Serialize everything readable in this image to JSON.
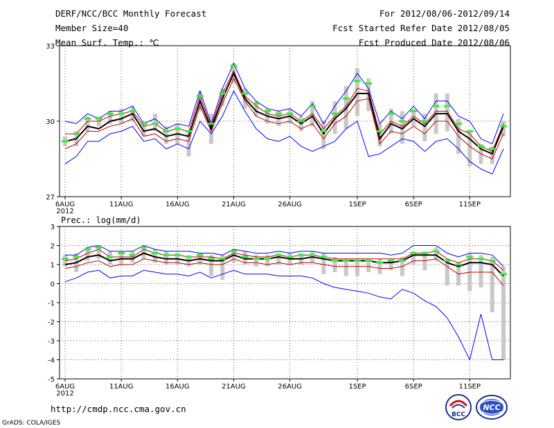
{
  "header": {
    "title": "DERF/NCC/BCC Monthly Forecast",
    "member_size": "Member Size=40",
    "variable": "Mean Surf. Temp.: ℃",
    "period": "For 2012/08/06-2012/09/14",
    "fcst_started": "Fcst Started Refer Date 2012/08/05",
    "fcst_produced": "Fcst Produced Date 2012/08/06"
  },
  "footer": {
    "url": "http://cmdp.ncc.cma.gov.cn",
    "credit": "GrADS: COLA/IGES",
    "logo_bcc": "BCC",
    "logo_ncc": "NCC"
  },
  "colors": {
    "envelope": "#0000ff",
    "spread": "#c00000",
    "mean": "#000000",
    "marker": "#33ee33",
    "box": "#c8c8c8",
    "grid": "#555555"
  },
  "chart_data": [
    {
      "type": "line",
      "title": "Mean Surf. Temp.: ℃",
      "xlabel": "",
      "ylabel": "℃",
      "ylim": [
        27,
        33
      ],
      "yticks": [
        27,
        30,
        33
      ],
      "x_ticks": [
        {
          "day": 0,
          "label": "6AUG",
          "sub": "2012"
        },
        {
          "day": 5,
          "label": "11AUG"
        },
        {
          "day": 10,
          "label": "16AUG"
        },
        {
          "day": 15,
          "label": "21AUG"
        },
        {
          "day": 20,
          "label": "26AUG"
        },
        {
          "day": 26,
          "label": "1SEP"
        },
        {
          "day": 31,
          "label": "6SEP"
        },
        {
          "day": 36,
          "label": "11SEP"
        }
      ],
      "grid": true,
      "days": [
        0,
        1,
        2,
        3,
        4,
        5,
        6,
        7,
        8,
        9,
        10,
        11,
        12,
        13,
        14,
        15,
        16,
        17,
        18,
        19,
        20,
        21,
        22,
        23,
        24,
        25,
        26,
        27,
        28,
        29,
        30,
        31,
        32,
        33,
        34,
        35,
        36,
        37,
        38,
        39
      ],
      "series": [
        {
          "name": "max",
          "role": "envelope",
          "values": [
            30.0,
            29.9,
            30.3,
            30.1,
            30.4,
            30.4,
            30.6,
            29.9,
            30.1,
            29.7,
            29.9,
            29.8,
            31.2,
            29.9,
            31.3,
            32.3,
            31.3,
            30.8,
            30.5,
            30.4,
            30.5,
            30.2,
            30.7,
            29.9,
            30.6,
            31.2,
            31.9,
            31.3,
            29.9,
            30.4,
            30.1,
            30.6,
            30.1,
            30.8,
            30.8,
            30.2,
            30.0,
            29.3,
            29.1,
            30.3
          ]
        },
        {
          "name": "upper",
          "role": "spread",
          "values": [
            29.5,
            29.5,
            30.0,
            30.0,
            30.2,
            30.3,
            30.4,
            29.8,
            29.9,
            29.6,
            29.7,
            29.6,
            31.0,
            29.8,
            31.1,
            32.0,
            31.0,
            30.6,
            30.3,
            30.2,
            30.3,
            30.0,
            30.3,
            29.7,
            30.2,
            30.6,
            31.3,
            31.2,
            29.5,
            30.0,
            29.8,
            30.2,
            29.9,
            30.4,
            30.4,
            29.7,
            29.5,
            29.0,
            28.8,
            29.9
          ]
        },
        {
          "name": "mean",
          "role": "mean",
          "values": [
            29.2,
            29.3,
            29.8,
            29.7,
            30.0,
            30.1,
            30.3,
            29.6,
            29.7,
            29.4,
            29.5,
            29.4,
            30.8,
            29.7,
            30.9,
            31.9,
            30.9,
            30.4,
            30.2,
            30.1,
            30.2,
            29.9,
            30.2,
            29.5,
            30.1,
            30.5,
            31.1,
            31.1,
            29.3,
            29.9,
            29.7,
            30.1,
            29.8,
            30.3,
            30.3,
            29.6,
            29.3,
            28.9,
            28.7,
            29.8
          ]
        },
        {
          "name": "lower",
          "role": "spread",
          "values": [
            28.9,
            29.1,
            29.6,
            29.6,
            29.8,
            29.9,
            30.1,
            29.4,
            29.5,
            29.2,
            29.3,
            29.2,
            30.6,
            29.6,
            30.7,
            31.7,
            30.8,
            30.2,
            30.0,
            29.9,
            30.0,
            29.7,
            29.9,
            29.3,
            29.9,
            30.2,
            30.8,
            30.9,
            29.1,
            29.6,
            29.5,
            29.8,
            29.5,
            30.0,
            30.0,
            29.4,
            29.0,
            28.7,
            28.5,
            29.5
          ]
        },
        {
          "name": "min",
          "role": "envelope",
          "values": [
            28.3,
            28.6,
            29.2,
            29.2,
            29.5,
            29.6,
            29.8,
            29.2,
            29.3,
            28.9,
            29.1,
            28.9,
            30.0,
            29.5,
            30.2,
            31.2,
            30.4,
            29.7,
            29.3,
            29.2,
            29.4,
            29.0,
            28.8,
            29.0,
            29.2,
            29.7,
            30.0,
            28.6,
            28.7,
            29.0,
            29.3,
            29.2,
            28.8,
            29.2,
            29.3,
            28.9,
            28.4,
            28.1,
            27.9,
            28.9
          ]
        },
        {
          "name": "marker",
          "role": "marker",
          "values": [
            29.2,
            29.5,
            30.1,
            30.1,
            30.3,
            30.3,
            30.4,
            29.9,
            29.9,
            29.6,
            29.7,
            29.6,
            31.0,
            29.9,
            31.1,
            32.2,
            31.1,
            30.7,
            30.4,
            30.3,
            30.3,
            30.0,
            30.6,
            29.6,
            30.3,
            30.9,
            31.6,
            31.5,
            29.6,
            30.3,
            30.0,
            30.4,
            30.0,
            30.6,
            30.6,
            29.9,
            29.6,
            29.0,
            28.9,
            29.8
          ]
        }
      ],
      "boxes": [
        [
          29.0,
          29.4
        ],
        [
          29.0,
          29.6
        ],
        [
          29.6,
          30.2
        ],
        [
          29.8,
          30.2
        ],
        [
          29.9,
          30.4
        ],
        [
          29.9,
          30.5
        ],
        [
          30.0,
          30.6
        ],
        [
          29.4,
          30.0
        ],
        [
          29.6,
          30.3
        ],
        [
          29.1,
          29.8
        ],
        [
          29.1,
          29.9
        ],
        [
          28.6,
          29.6
        ],
        [
          30.4,
          31.2
        ],
        [
          29.1,
          30.3
        ],
        [
          30.6,
          31.3
        ],
        [
          31.5,
          32.3
        ],
        [
          30.5,
          31.3
        ],
        [
          30.2,
          30.8
        ],
        [
          29.9,
          30.5
        ],
        [
          29.8,
          30.4
        ],
        [
          29.9,
          30.5
        ],
        [
          29.6,
          30.2
        ],
        [
          29.8,
          30.8
        ],
        [
          28.9,
          30.0
        ],
        [
          29.5,
          30.8
        ],
        [
          29.7,
          31.4
        ],
        [
          30.2,
          32.1
        ],
        [
          30.4,
          31.7
        ],
        [
          29.0,
          29.9
        ],
        [
          29.5,
          30.5
        ],
        [
          29.1,
          30.4
        ],
        [
          29.8,
          30.5
        ],
        [
          29.2,
          30.3
        ],
        [
          29.5,
          31.1
        ],
        [
          29.6,
          31.1
        ],
        [
          28.7,
          30.1
        ],
        [
          28.2,
          29.6
        ],
        [
          28.3,
          29.1
        ],
        [
          28.3,
          29.0
        ],
        [
          29.4,
          30.0
        ]
      ]
    },
    {
      "type": "line",
      "title": "Prec.: log(mm/d)",
      "xlabel": "",
      "ylabel": "log(mm/d)",
      "ylim": [
        -5,
        3
      ],
      "yticks": [
        -5,
        -4,
        -3,
        -2,
        -1,
        0,
        1,
        2,
        3
      ],
      "x_ticks": [
        {
          "day": 0,
          "label": "6AUG",
          "sub": "2012"
        },
        {
          "day": 5,
          "label": "11AUG"
        },
        {
          "day": 10,
          "label": "16AUG"
        },
        {
          "day": 15,
          "label": "21AUG"
        },
        {
          "day": 20,
          "label": "26AUG"
        },
        {
          "day": 26,
          "label": "1SEP"
        },
        {
          "day": 31,
          "label": "6SEP"
        },
        {
          "day": 36,
          "label": "11SEP"
        }
      ],
      "grid": true,
      "days": [
        0,
        1,
        2,
        3,
        4,
        5,
        6,
        7,
        8,
        9,
        10,
        11,
        12,
        13,
        14,
        15,
        16,
        17,
        18,
        19,
        20,
        21,
        22,
        23,
        24,
        25,
        26,
        27,
        28,
        29,
        30,
        31,
        32,
        33,
        34,
        35,
        36,
        37,
        38,
        39
      ],
      "series": [
        {
          "name": "max",
          "role": "envelope",
          "values": [
            1.5,
            1.5,
            1.9,
            2.0,
            1.7,
            1.7,
            1.7,
            2.0,
            1.8,
            1.7,
            1.7,
            1.7,
            1.6,
            1.6,
            1.5,
            1.8,
            1.7,
            1.6,
            1.6,
            1.7,
            1.6,
            1.7,
            1.7,
            1.6,
            1.6,
            1.6,
            1.6,
            1.6,
            1.6,
            1.5,
            1.6,
            2.0,
            2.0,
            2.0,
            1.6,
            1.4,
            1.6,
            1.6,
            1.5,
            0.9
          ]
        },
        {
          "name": "upper",
          "role": "spread",
          "values": [
            1.2,
            1.3,
            1.6,
            1.8,
            1.4,
            1.4,
            1.4,
            1.8,
            1.6,
            1.5,
            1.5,
            1.4,
            1.4,
            1.4,
            1.3,
            1.6,
            1.5,
            1.4,
            1.4,
            1.5,
            1.4,
            1.5,
            1.5,
            1.4,
            1.3,
            1.3,
            1.3,
            1.3,
            1.3,
            1.3,
            1.3,
            1.6,
            1.6,
            1.7,
            1.3,
            1.1,
            1.3,
            1.3,
            1.2,
            0.7
          ]
        },
        {
          "name": "mean",
          "role": "mean",
          "values": [
            1.0,
            1.1,
            1.4,
            1.5,
            1.2,
            1.3,
            1.3,
            1.6,
            1.4,
            1.3,
            1.3,
            1.2,
            1.3,
            1.2,
            1.2,
            1.5,
            1.3,
            1.3,
            1.3,
            1.4,
            1.3,
            1.3,
            1.4,
            1.3,
            1.2,
            1.2,
            1.2,
            1.2,
            1.1,
            1.1,
            1.2,
            1.5,
            1.5,
            1.5,
            1.1,
            0.9,
            1.1,
            1.1,
            1.0,
            0.4
          ]
        },
        {
          "name": "lower",
          "role": "spread",
          "values": [
            0.8,
            0.9,
            1.1,
            1.2,
            0.9,
            1.0,
            1.0,
            1.3,
            1.2,
            1.1,
            1.1,
            1.0,
            1.1,
            1.0,
            1.0,
            1.3,
            1.1,
            1.1,
            1.0,
            1.1,
            1.0,
            1.1,
            1.1,
            1.0,
            0.9,
            0.9,
            0.9,
            0.9,
            0.8,
            0.8,
            0.9,
            1.2,
            1.2,
            1.3,
            0.9,
            0.5,
            0.6,
            0.6,
            0.6,
            -0.1
          ]
        },
        {
          "name": "min",
          "role": "envelope",
          "values": [
            0.1,
            0.3,
            0.6,
            0.7,
            0.3,
            0.4,
            0.4,
            0.7,
            0.6,
            0.5,
            0.5,
            0.4,
            0.6,
            0.3,
            0.5,
            0.7,
            0.5,
            0.5,
            0.5,
            0.4,
            0.4,
            0.4,
            0.3,
            0.0,
            -0.2,
            -0.3,
            -0.4,
            -0.5,
            -0.7,
            -0.8,
            -0.3,
            -0.5,
            -0.9,
            -1.2,
            -1.8,
            -2.8,
            -4.0,
            -1.6,
            -4.0,
            -4.0
          ]
        },
        {
          "name": "marker",
          "role": "marker",
          "values": [
            1.3,
            1.4,
            1.8,
            1.9,
            1.4,
            1.6,
            1.5,
            1.9,
            1.6,
            1.5,
            1.5,
            1.4,
            1.5,
            1.3,
            1.3,
            1.7,
            1.4,
            1.3,
            1.3,
            1.5,
            1.4,
            1.5,
            1.5,
            1.4,
            1.2,
            1.2,
            1.2,
            1.2,
            1.1,
            1.2,
            1.2,
            1.6,
            1.6,
            1.7,
            1.2,
            1.0,
            1.4,
            1.3,
            1.2,
            0.5
          ]
        }
      ],
      "boxes": [
        [
          0.9,
          1.5
        ],
        [
          0.6,
          1.6
        ],
        [
          1.2,
          1.9
        ],
        [
          1.3,
          2.0
        ],
        [
          1.0,
          1.7
        ],
        [
          1.0,
          1.7
        ],
        [
          1.1,
          1.7
        ],
        [
          1.3,
          2.0
        ],
        [
          1.1,
          1.8
        ],
        [
          1.0,
          1.7
        ],
        [
          1.0,
          1.6
        ],
        [
          0.9,
          1.5
        ],
        [
          1.0,
          1.6
        ],
        [
          0.4,
          1.5
        ],
        [
          0.2,
          1.5
        ],
        [
          1.1,
          1.8
        ],
        [
          1.0,
          1.7
        ],
        [
          0.9,
          1.5
        ],
        [
          0.9,
          1.5
        ],
        [
          1.0,
          1.6
        ],
        [
          1.0,
          1.6
        ],
        [
          1.0,
          1.6
        ],
        [
          1.1,
          1.7
        ],
        [
          0.5,
          1.6
        ],
        [
          0.6,
          1.4
        ],
        [
          0.4,
          1.3
        ],
        [
          0.4,
          1.3
        ],
        [
          0.6,
          1.3
        ],
        [
          0.5,
          1.3
        ],
        [
          0.7,
          1.3
        ],
        [
          0.4,
          1.4
        ],
        [
          1.0,
          1.7
        ],
        [
          0.7,
          1.7
        ],
        [
          1.2,
          1.9
        ],
        [
          -0.1,
          1.3
        ],
        [
          -0.1,
          1.1
        ],
        [
          -0.4,
          1.6
        ],
        [
          -0.2,
          1.5
        ],
        [
          -1.5,
          1.4
        ],
        [
          -4.0,
          0.9
        ]
      ]
    }
  ]
}
